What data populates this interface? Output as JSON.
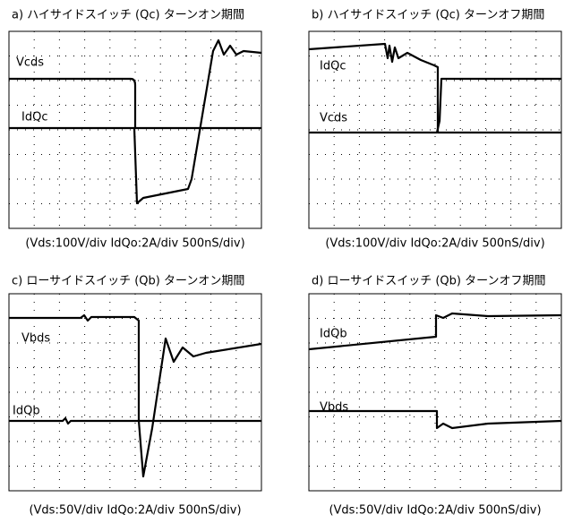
{
  "panels": [
    {
      "title": "a) ハイサイドスイッチ (Qc) ターンオン期間",
      "traces": [
        "Vcds",
        "IdQc"
      ],
      "caption": "(Vds:100V/div IdQo:2A/div 500nS/div)"
    },
    {
      "title": "b) ハイサイドスイッチ (Qc) ターンオフ期間",
      "traces": [
        "IdQc",
        "Vcds"
      ],
      "caption": "(Vds:100V/div IdQo:2A/div 500nS/div)"
    },
    {
      "title": "c) ローサイドスイッチ (Qb) ターンオン期間",
      "traces": [
        "Vbds",
        "IdQb"
      ],
      "caption": "(Vds:50V/div IdQo:2A/div 500nS/div)"
    },
    {
      "title": "d) ローサイドスイッチ (Qb) ターンオフ期間",
      "traces": [
        "IdQb",
        "Vbds"
      ],
      "caption": "(Vds:50V/div IdQo:2A/div 500nS/div)"
    }
  ]
}
